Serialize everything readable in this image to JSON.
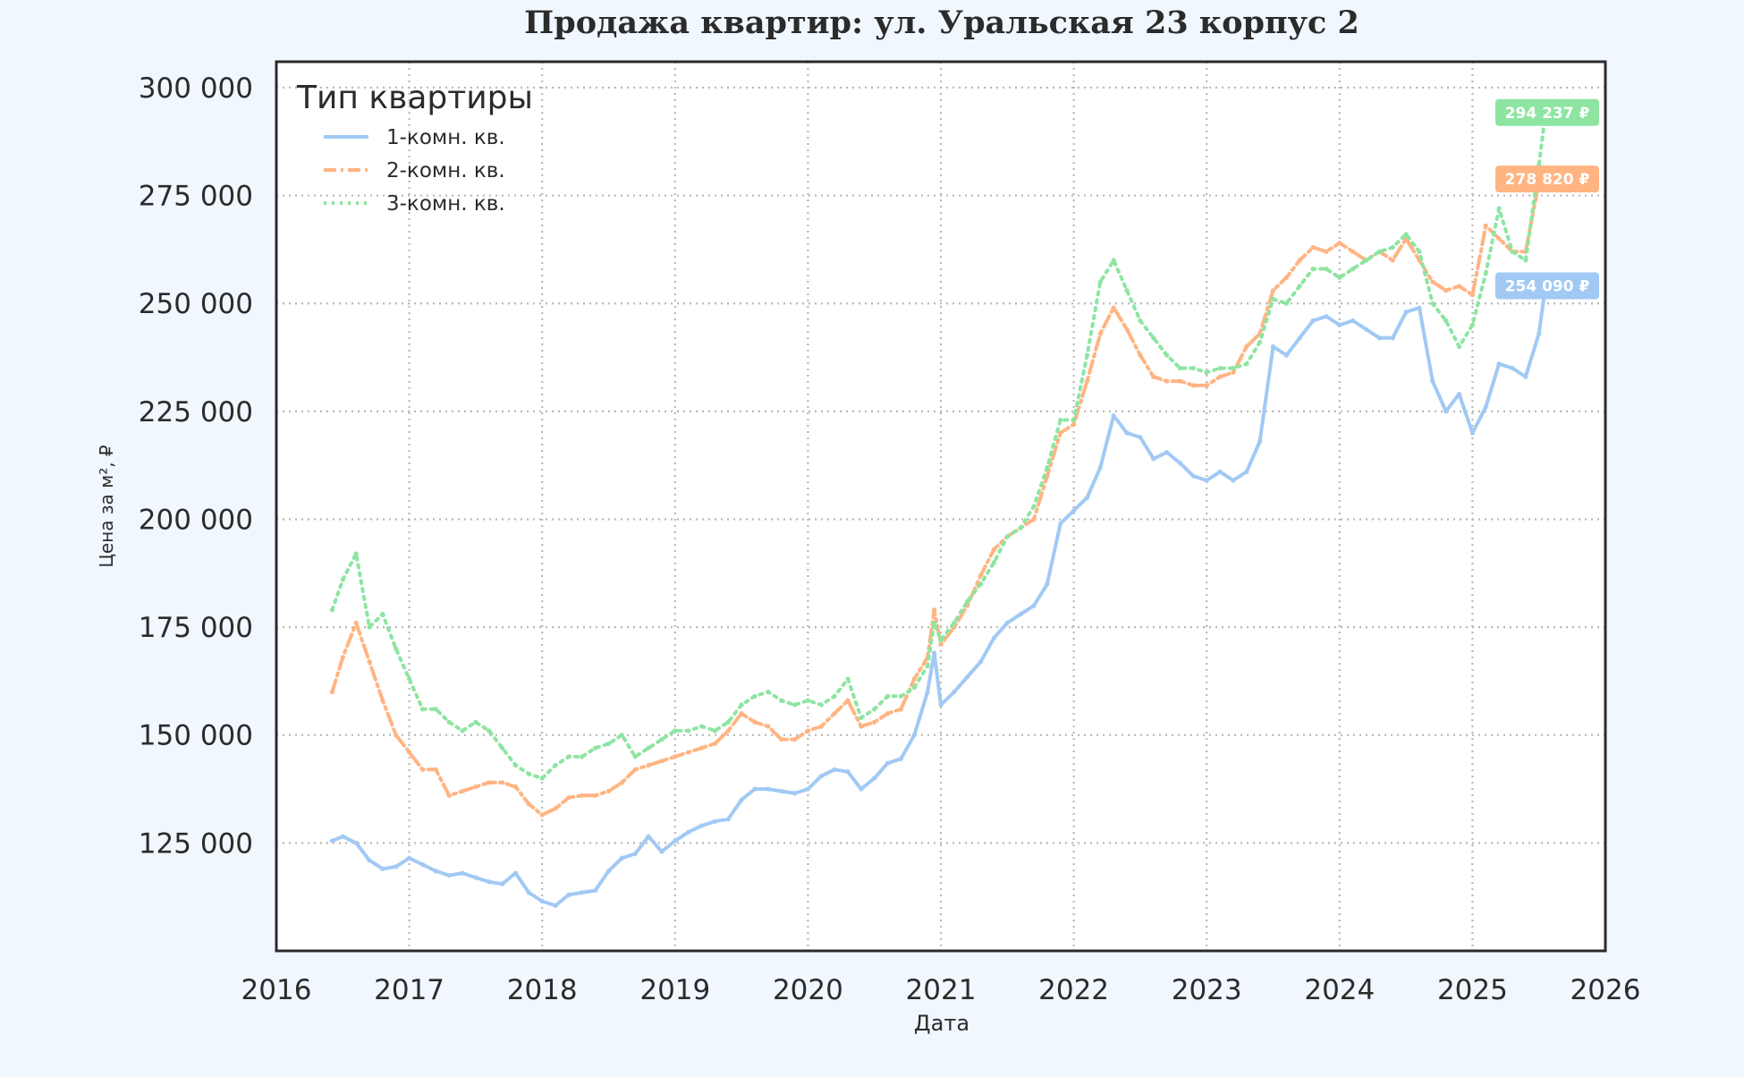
{
  "chart_data": {
    "type": "line",
    "title": "Продажа квартир: ул. Уральская 23 корпус 2",
    "xlabel": "Дата",
    "ylabel": "Цена за м², ₽",
    "xlim": [
      2016,
      2026
    ],
    "ylim": [
      100000,
      306000
    ],
    "x_ticks": [
      "2016",
      "2017",
      "2018",
      "2019",
      "2020",
      "2021",
      "2022",
      "2023",
      "2024",
      "2025",
      "2026"
    ],
    "y_ticks": [
      "125 000",
      "150 000",
      "175 000",
      "200 000",
      "225 000",
      "250 000",
      "275 000",
      "300 000"
    ],
    "grid": true,
    "legend": {
      "title": "Тип квартиры",
      "placement": "top-left"
    },
    "series": [
      {
        "name": "1-комн. кв.",
        "color": "#a1c9f4",
        "style": "solid",
        "end_label": "254 090 ₽",
        "x": [
          2016.42,
          2016.5,
          2016.6,
          2016.7,
          2016.8,
          2016.9,
          2017.0,
          2017.1,
          2017.2,
          2017.3,
          2017.4,
          2017.5,
          2017.6,
          2017.7,
          2017.8,
          2017.9,
          2018.0,
          2018.1,
          2018.2,
          2018.3,
          2018.4,
          2018.5,
          2018.6,
          2018.7,
          2018.8,
          2018.9,
          2019.0,
          2019.1,
          2019.2,
          2019.3,
          2019.4,
          2019.5,
          2019.6,
          2019.7,
          2019.8,
          2019.9,
          2020.0,
          2020.1,
          2020.2,
          2020.3,
          2020.4,
          2020.5,
          2020.6,
          2020.7,
          2020.8,
          2020.9,
          2020.95,
          2021.0,
          2021.1,
          2021.2,
          2021.3,
          2021.4,
          2021.5,
          2021.6,
          2021.7,
          2021.8,
          2021.9,
          2022.0,
          2022.1,
          2022.2,
          2022.3,
          2022.4,
          2022.5,
          2022.6,
          2022.7,
          2022.8,
          2022.9,
          2023.0,
          2023.1,
          2023.2,
          2023.3,
          2023.4,
          2023.5,
          2023.6,
          2023.7,
          2023.8,
          2023.9,
          2024.0,
          2024.1,
          2024.2,
          2024.3,
          2024.4,
          2024.5,
          2024.6,
          2024.7,
          2024.8,
          2024.9,
          2025.0,
          2025.1,
          2025.2,
          2025.3,
          2025.4,
          2025.5,
          2025.55
        ],
        "y": [
          125500,
          126500,
          125000,
          121000,
          119000,
          119500,
          121500,
          120000,
          118500,
          117500,
          118000,
          117000,
          116000,
          115500,
          118000,
          113500,
          111500,
          110500,
          113000,
          113500,
          114000,
          118500,
          121500,
          122500,
          126500,
          123000,
          125500,
          127500,
          129000,
          130000,
          130500,
          135000,
          137500,
          137500,
          137000,
          136500,
          137500,
          140500,
          142000,
          141500,
          137500,
          140000,
          143500,
          144500,
          150000,
          160000,
          169000,
          157000,
          160000,
          163500,
          167000,
          172500,
          176000,
          178000,
          180000,
          185000,
          199000,
          202000,
          205000,
          212000,
          224000,
          220000,
          219000,
          214000,
          215500,
          213000,
          210000,
          209000,
          211000,
          209000,
          211000,
          218000,
          240000,
          238000,
          242000,
          246000,
          247000,
          245000,
          246000,
          244000,
          242000,
          242000,
          248000,
          249000,
          232000,
          225000,
          229000,
          220000,
          226000,
          236000,
          235000,
          233000,
          243000,
          254090
        ]
      },
      {
        "name": "2-комн. кв.",
        "color": "#ffb482",
        "style": "dashdot",
        "end_label": "278 820 ₽",
        "x": [
          2016.42,
          2016.5,
          2016.6,
          2016.7,
          2016.8,
          2016.9,
          2017.0,
          2017.1,
          2017.2,
          2017.3,
          2017.4,
          2017.5,
          2017.6,
          2017.7,
          2017.8,
          2017.9,
          2018.0,
          2018.1,
          2018.2,
          2018.3,
          2018.4,
          2018.5,
          2018.6,
          2018.7,
          2018.8,
          2018.9,
          2019.0,
          2019.1,
          2019.2,
          2019.3,
          2019.4,
          2019.5,
          2019.6,
          2019.7,
          2019.8,
          2019.9,
          2020.0,
          2020.1,
          2020.2,
          2020.3,
          2020.4,
          2020.5,
          2020.6,
          2020.7,
          2020.8,
          2020.9,
          2020.95,
          2021.0,
          2021.1,
          2021.2,
          2021.3,
          2021.4,
          2021.5,
          2021.6,
          2021.7,
          2021.8,
          2021.9,
          2022.0,
          2022.1,
          2022.2,
          2022.3,
          2022.4,
          2022.5,
          2022.6,
          2022.7,
          2022.8,
          2022.9,
          2023.0,
          2023.1,
          2023.2,
          2023.3,
          2023.4,
          2023.5,
          2023.6,
          2023.7,
          2023.8,
          2023.9,
          2024.0,
          2024.1,
          2024.2,
          2024.3,
          2024.4,
          2024.5,
          2024.6,
          2024.7,
          2024.8,
          2024.9,
          2025.0,
          2025.1,
          2025.2,
          2025.3,
          2025.4,
          2025.5,
          2025.55
        ],
        "y": [
          160000,
          168000,
          176000,
          167000,
          158000,
          150000,
          146000,
          142000,
          142000,
          136000,
          137000,
          138000,
          139000,
          139000,
          138000,
          134000,
          131500,
          133000,
          135500,
          136000,
          136000,
          137000,
          139000,
          142000,
          143000,
          144000,
          145000,
          146000,
          147000,
          148000,
          151000,
          155000,
          153000,
          152000,
          149000,
          149000,
          151000,
          152000,
          155000,
          158000,
          152000,
          153000,
          155000,
          156000,
          163000,
          168000,
          179000,
          171000,
          175000,
          180000,
          187000,
          193000,
          196000,
          198000,
          200000,
          210000,
          220000,
          222000,
          232000,
          243000,
          249000,
          244000,
          238000,
          233000,
          232000,
          232000,
          231000,
          231000,
          233000,
          234000,
          240000,
          243000,
          253000,
          256000,
          260000,
          263000,
          262000,
          264000,
          262000,
          260000,
          262000,
          260000,
          265000,
          260000,
          255000,
          253000,
          254000,
          252000,
          268000,
          265000,
          262000,
          262000,
          278000,
          278820
        ]
      },
      {
        "name": "3-комн. кв.",
        "color": "#8de5a1",
        "style": "dotted",
        "end_label": "294 237 ₽",
        "x": [
          2016.42,
          2016.5,
          2016.6,
          2016.7,
          2016.8,
          2016.9,
          2017.0,
          2017.1,
          2017.2,
          2017.3,
          2017.4,
          2017.5,
          2017.6,
          2017.7,
          2017.8,
          2017.9,
          2018.0,
          2018.1,
          2018.2,
          2018.3,
          2018.4,
          2018.5,
          2018.6,
          2018.7,
          2018.8,
          2018.9,
          2019.0,
          2019.1,
          2019.2,
          2019.3,
          2019.4,
          2019.5,
          2019.6,
          2019.7,
          2019.8,
          2019.9,
          2020.0,
          2020.1,
          2020.2,
          2020.3,
          2020.4,
          2020.5,
          2020.6,
          2020.7,
          2020.8,
          2020.9,
          2020.95,
          2021.0,
          2021.1,
          2021.2,
          2021.3,
          2021.4,
          2021.5,
          2021.6,
          2021.7,
          2021.8,
          2021.9,
          2022.0,
          2022.1,
          2022.2,
          2022.3,
          2022.4,
          2022.5,
          2022.6,
          2022.7,
          2022.8,
          2022.9,
          2023.0,
          2023.1,
          2023.2,
          2023.3,
          2023.4,
          2023.5,
          2023.6,
          2023.7,
          2023.8,
          2023.9,
          2024.0,
          2024.1,
          2024.2,
          2024.3,
          2024.4,
          2024.5,
          2024.6,
          2024.7,
          2024.8,
          2024.9,
          2025.0,
          2025.1,
          2025.2,
          2025.3,
          2025.4,
          2025.5,
          2025.55
        ],
        "y": [
          179000,
          186000,
          192000,
          175000,
          178000,
          170000,
          163000,
          156000,
          156000,
          153000,
          151000,
          153000,
          151000,
          147000,
          143000,
          141000,
          140000,
          143000,
          145000,
          145000,
          147000,
          148000,
          150000,
          145000,
          147000,
          149000,
          151000,
          151000,
          152000,
          151000,
          153000,
          157000,
          159000,
          160000,
          158000,
          157000,
          158000,
          157000,
          159000,
          163000,
          154000,
          156000,
          159000,
          159000,
          161000,
          166000,
          176000,
          172000,
          176000,
          181000,
          185000,
          190000,
          196000,
          198000,
          203000,
          212000,
          223000,
          223000,
          238000,
          255000,
          260000,
          253000,
          246000,
          242000,
          238000,
          235000,
          235000,
          234000,
          235000,
          235000,
          236000,
          241000,
          251000,
          250000,
          254000,
          258000,
          258000,
          256000,
          258000,
          260000,
          262000,
          263000,
          266000,
          262000,
          250000,
          246000,
          240000,
          245000,
          257000,
          272000,
          262000,
          260000,
          282000,
          294237
        ]
      }
    ]
  }
}
